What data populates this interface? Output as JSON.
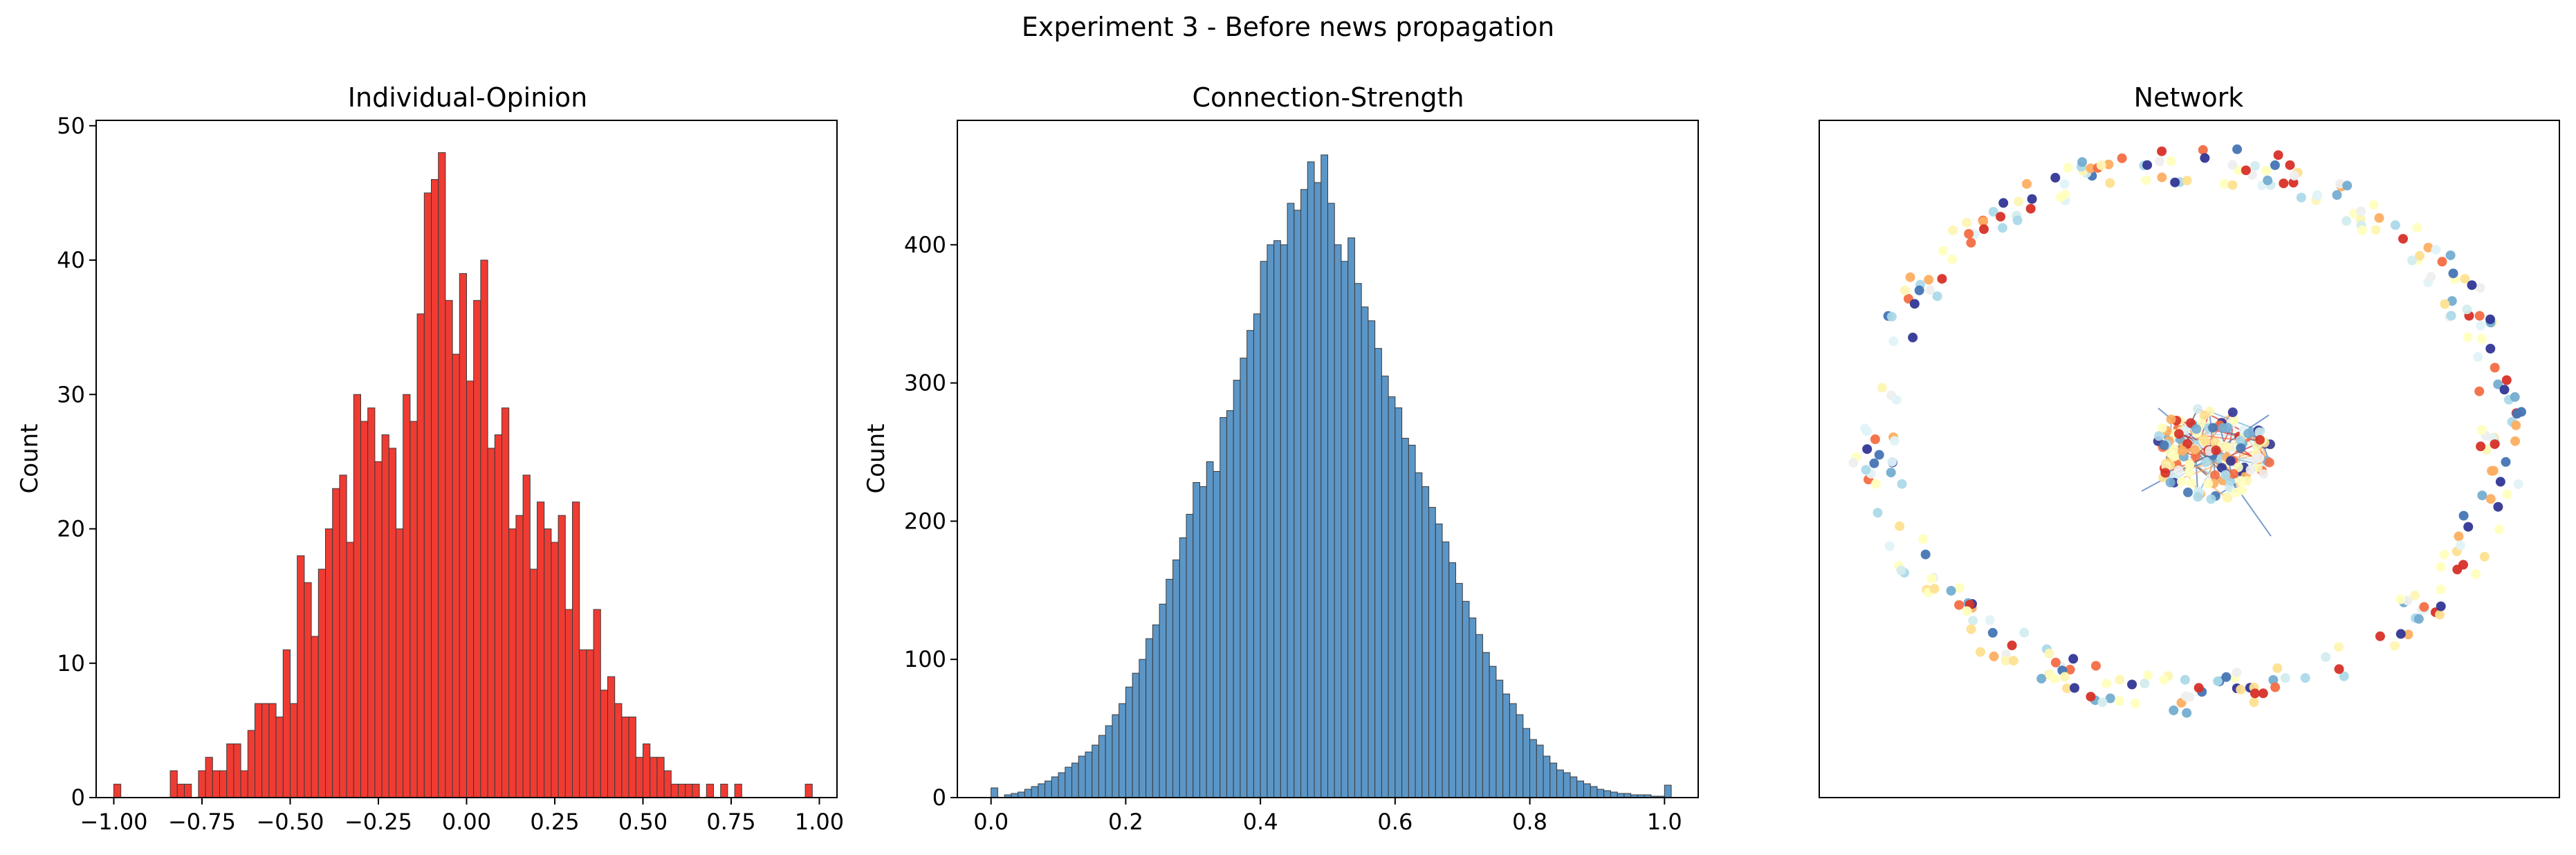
{
  "suptitle": "Experiment 3 - Before news propagation",
  "chart_data": [
    {
      "type": "bar",
      "title": "Individual-Opinion",
      "xlabel": "",
      "ylabel": "Count",
      "xlim": [
        -1.05,
        1.05
      ],
      "ylim": [
        0,
        50.4
      ],
      "bin_start": -1.0,
      "bin_width": 0.02,
      "xticks": [
        -1.0,
        -0.75,
        -0.5,
        -0.25,
        0.0,
        0.25,
        0.5,
        0.75,
        1.0
      ],
      "xtick_labels": [
        "−1.00",
        "−0.75",
        "−0.50",
        "−0.25",
        "0.00",
        "0.25",
        "0.50",
        "0.75",
        "1.00"
      ],
      "yticks": [
        0,
        10,
        20,
        30,
        40,
        50
      ],
      "ytick_labels": [
        "0",
        "10",
        "20",
        "30",
        "40",
        "50"
      ],
      "color": "#f03b32",
      "values": [
        1,
        0,
        0,
        0,
        0,
        0,
        0,
        0,
        2,
        1,
        1,
        0,
        2,
        3,
        2,
        2,
        4,
        4,
        2,
        5,
        7,
        7,
        7,
        6,
        11,
        7,
        18,
        16,
        12,
        17,
        20,
        23,
        24,
        19,
        30,
        28,
        29,
        25,
        27,
        26,
        20,
        30,
        28,
        36,
        45,
        46,
        48,
        37,
        33,
        39,
        31,
        37,
        40,
        26,
        27,
        29,
        20,
        21,
        24,
        17,
        22,
        20,
        19,
        21,
        14,
        22,
        11,
        11,
        14,
        8,
        9,
        7,
        6,
        6,
        3,
        4,
        3,
        3,
        2,
        1,
        1,
        1,
        1,
        0,
        1,
        0,
        1,
        0,
        1,
        0,
        0,
        0,
        0,
        0,
        0,
        0,
        0,
        0,
        1
      ]
    },
    {
      "type": "bar",
      "title": "Connection-Strength",
      "xlabel": "",
      "ylabel": "Count",
      "xlim": [
        -0.05,
        1.05
      ],
      "ylim": [
        0,
        490
      ],
      "bin_start": 0.0,
      "bin_width": 0.01,
      "xticks": [
        0.0,
        0.2,
        0.4,
        0.6,
        0.8,
        1.0
      ],
      "xtick_labels": [
        "0.0",
        "0.2",
        "0.4",
        "0.6",
        "0.8",
        "1.0"
      ],
      "yticks": [
        0,
        100,
        200,
        300,
        400
      ],
      "ytick_labels": [
        "0",
        "100",
        "200",
        "300",
        "400"
      ],
      "color": "#5b96c7",
      "values": [
        7,
        0,
        2,
        3,
        4,
        6,
        8,
        10,
        12,
        15,
        18,
        22,
        25,
        30,
        33,
        38,
        45,
        52,
        60,
        68,
        80,
        90,
        100,
        115,
        125,
        140,
        158,
        172,
        188,
        205,
        228,
        225,
        243,
        236,
        275,
        280,
        302,
        318,
        338,
        350,
        388,
        400,
        403,
        400,
        430,
        425,
        440,
        460,
        445,
        465,
        430,
        400,
        388,
        405,
        372,
        355,
        345,
        325,
        305,
        290,
        282,
        260,
        255,
        235,
        225,
        210,
        198,
        185,
        170,
        155,
        142,
        130,
        118,
        105,
        95,
        85,
        75,
        68,
        60,
        50,
        42,
        38,
        30,
        25,
        20,
        18,
        15,
        12,
        10,
        8,
        6,
        5,
        4,
        3,
        3,
        2,
        2,
        2,
        1,
        1,
        9
      ]
    }
  ],
  "network": {
    "title": "Network"
  }
}
